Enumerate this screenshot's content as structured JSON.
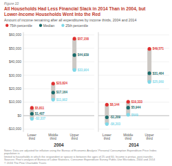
{
  "chart_data": [
    {
      "type": "dot",
      "title": "All Households Had Less Financial Slack in 2014 Than in 2004, but\nLower-Income Households Went Into the Red",
      "subtitle": "Amount of income remaining after all expenditures by income thirds, 2004 and 2014",
      "annotations": [
        "Figure 10",
        "Notes: Data are adjusted for inflation using the Bureau of Economic Analysis' Personal Consumption Expenditure Price Index; population is",
        "limited to households in which the respondent or spouse is between the ages of 25 and 60. Income is pretax, post-transfer.",
        "Sources: Pew's analysis of Bureau of Labor Statistics, Consumer Expenditure Survey Public-Use Microdata, 2004 and 2014",
        "© 2016 The Pew Charitable Trusts"
      ],
      "xlabel": "2004",
      "categories": [
        "Lower\nthird",
        "Middle\nthird",
        "Upper\nthird"
      ],
      "series": [
        {
          "name": "75th percentile",
          "color": "#e03030",
          "values": [
            5811,
            23824,
            57158
          ],
          "value_labels": [
            "$5,811",
            "$23,824",
            "$57,158"
          ]
        },
        {
          "name": "Median",
          "color": "#1a6b6b",
          "values": [
            1407,
            17164,
            44939
          ],
          "value_labels": [
            "$1,407",
            "$17,164",
            "$44,939"
          ]
        },
        {
          "name": "25th percentile",
          "color": "#7fd8e8",
          "values": [
            -2337,
            11902,
            33904
          ],
          "value_labels": [
            "-$2,337",
            "$11,902",
            "$33,904"
          ]
        }
      ],
      "color": "#ccc8c4",
      "marker": "circle",
      "ylim": [
        -12000,
        62000
      ],
      "yticks": [
        {
          "value": -10000,
          "label": "-$10,000"
        },
        {
          "value": 0,
          "label": "$0"
        },
        {
          "value": 10000,
          "label": "$10,000"
        },
        {
          "value": 20000,
          "label": "$20,000"
        },
        {
          "value": 30000,
          "label": "$30,000"
        },
        {
          "value": 40000,
          "label": "$40,000"
        },
        {
          "value": 50000,
          "label": "$50,000"
        },
        {
          "value": 60000,
          "label": "$60,000"
        }
      ],
      "grid": true,
      "data_labels": true,
      "legend": "top"
    },
    {
      "type": "dot",
      "xlabel": "2014",
      "categories": [
        "Lower\nthird",
        "Middle\nthird",
        "Upper\nthird"
      ],
      "series": [
        {
          "name": "75th percentile",
          "color": "#e03030",
          "values": [
            8144,
            10333,
            49571
          ],
          "value_labels": [
            "$8,144",
            "$10,333",
            "$49,571"
          ]
        },
        {
          "name": "Median",
          "color": "#1a6b6b",
          "values": [
            -1209,
            5944,
            31464
          ],
          "value_labels": [
            "-$1,209",
            "$5,944",
            "$31,464"
          ]
        },
        {
          "name": "25th percentile",
          "color": "#7fd8e8",
          "values": [
            -6203,
            649,
            25060
          ],
          "value_labels": [
            "-$6,203",
            "$649",
            "$25,060"
          ]
        }
      ],
      "color": "#ccc8c4",
      "marker": "circle",
      "ylim": [
        -12000,
        62000
      ],
      "yticks": [
        {
          "value": -10000,
          "label": "-$10,000"
        },
        {
          "value": 0,
          "label": "$0"
        },
        {
          "value": 10000,
          "label": "$10,000"
        },
        {
          "value": 20000,
          "label": "$20,000"
        },
        {
          "value": 30000,
          "label": "$30,000"
        },
        {
          "value": 40000,
          "label": "$40,000"
        },
        {
          "value": 50000,
          "label": "$50,000"
        },
        {
          "value": 60000,
          "label": "$60,000"
        }
      ],
      "grid": true,
      "data_labels": true,
      "tick_labels": "x"
    }
  ]
}
